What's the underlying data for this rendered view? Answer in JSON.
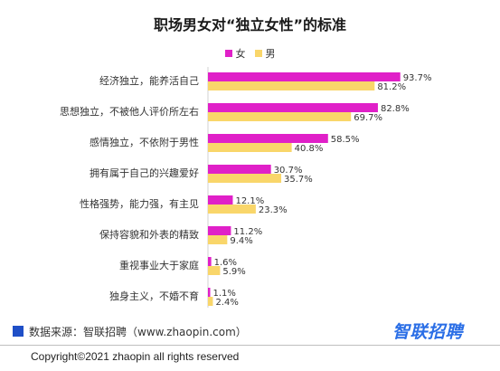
{
  "colors": {
    "female": "#e020c8",
    "male": "#f9d66a",
    "source_box": "#1f4fc7",
    "brand": "#2a6ee6"
  },
  "chart_data": {
    "type": "bar",
    "orientation": "horizontal",
    "title": "职场男女对“独立女性”的标准",
    "categories": [
      "经济独立，能养活自己",
      "思想独立，不被他人评价所左右",
      "感情独立，不依附于男性",
      "拥有属于自己的兴趣爱好",
      "性格强势，能力强，有主见",
      "保持容貌和外表的精致",
      "重视事业大于家庭",
      "独身主义，不婚不育"
    ],
    "series": [
      {
        "name": "女",
        "values": [
          93.7,
          82.8,
          58.5,
          30.7,
          12.1,
          11.2,
          1.6,
          1.1
        ],
        "labels": [
          "93.7%",
          "82.8%",
          "58.5%",
          "30.7%",
          "12.1%",
          "11.2%",
          "1.6%",
          "1.1%"
        ]
      },
      {
        "name": "男",
        "values": [
          81.2,
          69.7,
          40.8,
          35.7,
          23.3,
          9.4,
          5.9,
          2.4
        ],
        "labels": [
          "81.2%",
          "69.7%",
          "40.8%",
          "35.7%",
          "23.3%",
          "9.4%",
          "5.9%",
          "2.4%"
        ]
      }
    ],
    "xlim": [
      0,
      100
    ],
    "legend_position": "top-center",
    "grid": false
  },
  "legend": {
    "female": "女",
    "male": "男"
  },
  "source": "数据来源：智联招聘（www.zhaopin.com）",
  "brand": "智联招聘",
  "copyright": "Copyright©2021 zhaopin all rights reserved"
}
